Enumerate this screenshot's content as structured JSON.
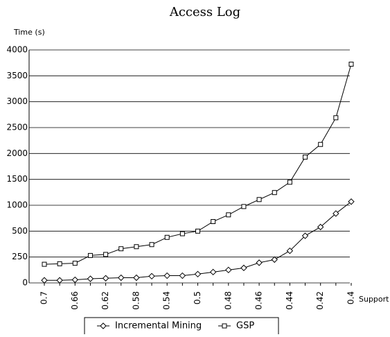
{
  "chart_data": {
    "type": "line",
    "title": "Access Log",
    "y_label": "Time (s)",
    "x_label": "Support",
    "categories": [
      "0.7",
      null,
      "0.66",
      null,
      "0.62",
      null,
      "0.58",
      null,
      "0.54",
      null,
      "0.5",
      null,
      "0.48",
      null,
      "0.46",
      null,
      "0.44",
      null,
      "0.42",
      null,
      "0.4"
    ],
    "series": [
      {
        "name": "Incremental Mining",
        "color": "#000000",
        "marker": "diamond",
        "values": [
          25,
          25,
          30,
          40,
          45,
          50,
          50,
          65,
          70,
          70,
          85,
          105,
          125,
          145,
          195,
          225,
          310,
          455,
          580,
          840,
          1070
        ]
      },
      {
        "name": "GSP",
        "color": "#000000",
        "marker": "square",
        "values": [
          180,
          185,
          190,
          265,
          275,
          330,
          350,
          370,
          440,
          475,
          500,
          685,
          815,
          975,
          1110,
          1245,
          1445,
          1930,
          2175,
          2690,
          3725
        ]
      }
    ],
    "ylim": [
      0,
      4000
    ],
    "yticks": [
      0,
      250,
      500,
      1000,
      1500,
      2000,
      2500,
      3000,
      3500,
      4000
    ],
    "grid": true,
    "legend": "bottom"
  }
}
